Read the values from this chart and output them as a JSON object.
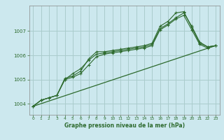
{
  "title": "Graphe pression niveau de la mer (hPa)",
  "bg_color": "#cce8ee",
  "grid_color": "#aacccc",
  "line_color": "#2d6a2d",
  "xlim": [
    -0.5,
    23.5
  ],
  "ylim": [
    1003.55,
    1008.05
  ],
  "yticks": [
    1004,
    1005,
    1006,
    1007
  ],
  "xticks": [
    0,
    1,
    2,
    3,
    4,
    5,
    6,
    7,
    8,
    9,
    10,
    11,
    12,
    13,
    14,
    15,
    16,
    17,
    18,
    19,
    20,
    21,
    22,
    23
  ],
  "line1_x": [
    0,
    1,
    2,
    3,
    4,
    5,
    6,
    7,
    8,
    9,
    10,
    11,
    12,
    13,
    14,
    15,
    16,
    17,
    18,
    19,
    20,
    21,
    22,
    23
  ],
  "line1_y": [
    1003.9,
    1004.15,
    1004.25,
    1004.35,
    1005.0,
    1005.25,
    1005.45,
    1005.8,
    1006.05,
    1006.1,
    1006.15,
    1006.2,
    1006.25,
    1006.3,
    1006.35,
    1006.45,
    1007.1,
    1007.3,
    1007.55,
    1007.75,
    1007.2,
    1006.55,
    1006.35,
    1006.4
  ],
  "line2_x": [
    0,
    1,
    2,
    3,
    4,
    5,
    6,
    7,
    8,
    9,
    10,
    11,
    12,
    13,
    14,
    15,
    16,
    17,
    18,
    19,
    20,
    21,
    22,
    23
  ],
  "line2_y": [
    1003.9,
    1004.15,
    1004.25,
    1004.35,
    1005.0,
    1005.1,
    1005.25,
    1005.6,
    1005.95,
    1006.05,
    1006.1,
    1006.15,
    1006.2,
    1006.25,
    1006.3,
    1006.4,
    1007.05,
    1007.25,
    1007.5,
    1007.65,
    1007.05,
    1006.45,
    1006.3,
    1006.4
  ],
  "line3_x": [
    0,
    1,
    2,
    3,
    4,
    5,
    6,
    7,
    8,
    9,
    10,
    11,
    12,
    13,
    14,
    15,
    16,
    17,
    18,
    19,
    20,
    21,
    22,
    23
  ],
  "line3_y": [
    1003.9,
    1004.15,
    1004.25,
    1004.35,
    1005.05,
    1005.15,
    1005.35,
    1005.85,
    1006.15,
    1006.15,
    1006.2,
    1006.25,
    1006.3,
    1006.35,
    1006.4,
    1006.5,
    1007.2,
    1007.4,
    1007.75,
    1007.8,
    1007.15,
    1006.5,
    1006.35,
    1006.4
  ],
  "line4_x": [
    0,
    23
  ],
  "line4_y": [
    1003.9,
    1006.4
  ]
}
